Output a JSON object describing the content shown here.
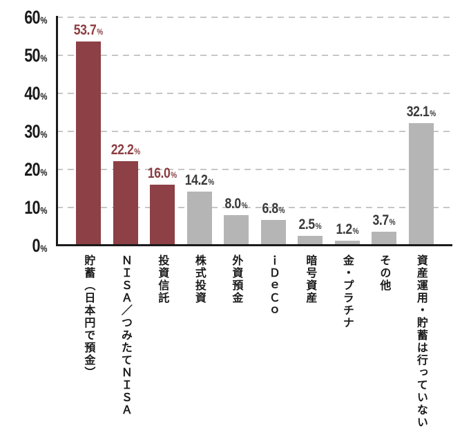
{
  "chart_data": {
    "type": "bar",
    "title": "",
    "xlabel": "",
    "ylabel": "",
    "categories": [
      "貯蓄（日本円で預金）",
      "ＮＩＳＡ／つみたてＮＩＳＡ",
      "投資信託",
      "株式投資",
      "外資預金",
      "ｉＤｅＣｏ",
      "暗号資産",
      "金・プラチナ",
      "その他",
      "資産運用・貯蓄は行っていない"
    ],
    "values": [
      53.7,
      22.2,
      16.0,
      14.2,
      8.0,
      6.8,
      2.5,
      1.2,
      3.7,
      32.1
    ],
    "value_strings": [
      "53.7",
      "22.2",
      "16.0",
      "14.2",
      "8.0",
      "6.8",
      "2.5",
      "1.2",
      "3.7",
      "32.1"
    ],
    "percent_sign": "%",
    "highlight_count": 3,
    "ylim": [
      0,
      60
    ],
    "yticks": [
      0,
      10,
      20,
      30,
      40,
      50,
      60
    ],
    "ytick_strings": [
      "0",
      "10",
      "20",
      "30",
      "40",
      "50",
      "60"
    ],
    "grid": "horizontal-dashed",
    "legend": "none",
    "colors": {
      "bar_highlight": "#8D4045",
      "bar_default": "#B5B5B5",
      "label_highlight": "#8C3E42",
      "label_default": "#3A3A3A",
      "axis": "#1A1A1A",
      "gridline": "#C6C6C6",
      "background": "#FFFFFF"
    }
  }
}
